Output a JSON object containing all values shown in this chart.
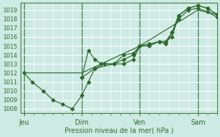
{
  "bg_color": "#ceeae4",
  "grid_color": "#ffffff",
  "line_color": "#2d6a2d",
  "xlabel": "Pression niveau de la mer( hPa )",
  "ylim": [
    1007.5,
    1019.8
  ],
  "yticks": [
    1008,
    1009,
    1010,
    1011,
    1012,
    1013,
    1014,
    1015,
    1016,
    1017,
    1018,
    1019
  ],
  "xtick_labels": [
    "Jeu",
    "Dim",
    "Ven",
    "Sam"
  ],
  "xtick_positions": [
    0,
    36,
    72,
    108
  ],
  "xlim": [
    -2,
    120
  ],
  "vline_x": [
    0,
    36,
    72,
    108
  ],
  "series": [
    {
      "x": [
        0,
        5,
        12,
        18,
        24,
        30,
        36,
        40,
        44,
        50,
        56,
        62,
        68,
        72,
        78,
        84,
        88,
        92,
        96,
        102,
        108,
        114,
        120
      ],
      "y": [
        1012.0,
        1011.0,
        1010.0,
        1009.0,
        1008.5,
        1008.0,
        1009.5,
        1011.0,
        1012.5,
        1013.0,
        1013.0,
        1013.5,
        1014.0,
        1015.0,
        1015.2,
        1015.5,
        1015.2,
        1016.5,
        1018.4,
        1019.2,
        1019.5,
        1019.2,
        1018.5
      ],
      "marker": "D",
      "markersize": 2.5,
      "lw": 0.9
    },
    {
      "x": [
        36,
        40,
        44,
        48,
        56,
        62,
        68,
        72,
        78,
        84,
        88,
        92,
        96,
        102,
        108,
        114,
        120
      ],
      "y": [
        1011.5,
        1014.5,
        1013.5,
        1013.0,
        1013.0,
        1014.0,
        1014.2,
        1015.0,
        1015.2,
        1015.5,
        1015.5,
        1016.0,
        1018.4,
        1019.2,
        1019.5,
        1019.2,
        1018.5
      ],
      "marker": "D",
      "markersize": 2.5,
      "lw": 0.9
    },
    {
      "x": [
        0,
        36,
        72,
        108,
        120
      ],
      "y": [
        1012.0,
        1012.0,
        1015.0,
        1019.0,
        1018.5
      ],
      "marker": null,
      "markersize": 0,
      "lw": 0.9
    },
    {
      "x": [
        36,
        44,
        56,
        62,
        68,
        72,
        78,
        84,
        88,
        92,
        96,
        102,
        108,
        114,
        120
      ],
      "y": [
        1011.5,
        1012.5,
        1013.0,
        1013.0,
        1013.5,
        1015.0,
        1015.0,
        1015.5,
        1015.5,
        1016.5,
        1018.0,
        1019.0,
        1019.2,
        1018.8,
        1018.2
      ],
      "marker": "D",
      "markersize": 2.5,
      "lw": 0.9
    }
  ]
}
